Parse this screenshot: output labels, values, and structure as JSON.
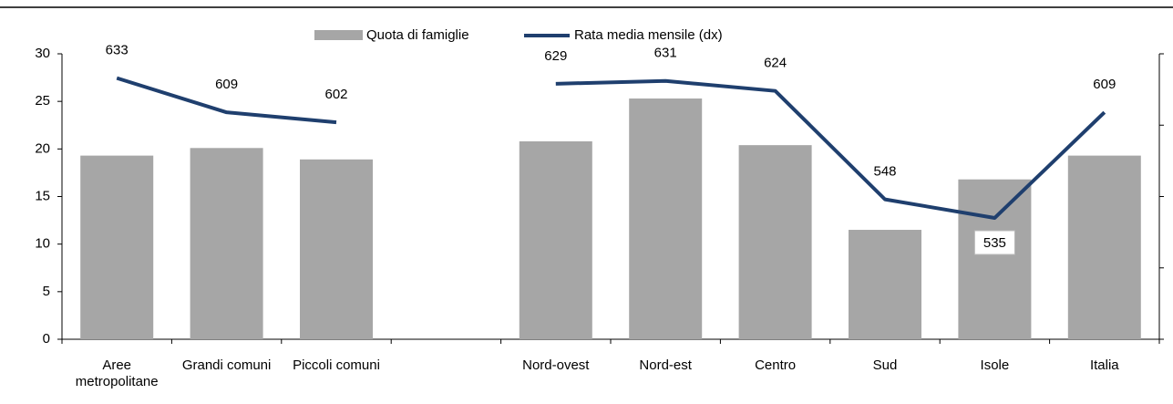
{
  "chart_data": {
    "type": "bar",
    "categories": [
      "Aree metropolitane",
      "Grandi comuni",
      "Piccoli comuni",
      null,
      "Nord-ovest",
      "Nord-est",
      "Centro",
      "Sud",
      "Isole",
      "Italia"
    ],
    "series": [
      {
        "name": "Quota di famiglie",
        "type": "bar",
        "color": "#a6a6a6",
        "values": [
          19.3,
          20.1,
          18.9,
          null,
          20.8,
          25.3,
          20.4,
          11.5,
          16.8,
          19.3
        ]
      },
      {
        "name": "Rata media mensile (dx)",
        "type": "line",
        "axis": "y2",
        "color": "#1f3f6e",
        "values": [
          633,
          609,
          602,
          null,
          629,
          631,
          624,
          548,
          535,
          609
        ]
      }
    ],
    "ylim": [
      0,
      30
    ],
    "yticks": [
      0,
      5,
      10,
      15,
      20,
      25,
      30
    ],
    "y2lim": [
      450,
      650
    ],
    "y2ticks": [
      450,
      500,
      550,
      600,
      650
    ],
    "legend": "top"
  }
}
